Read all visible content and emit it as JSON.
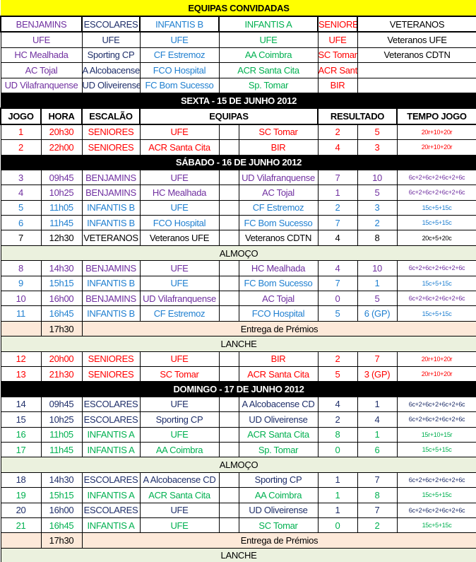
{
  "title": "EQUIPAS CONVIDADAS",
  "colors": {
    "BENJAMINS": "#7030a0",
    "ESCOLARES": "#1f2f6a",
    "INFANTIS B": "#1f7fd0",
    "INFANTIS A": "#00b050",
    "SENIORES": "#ff0000",
    "VETERANOS": "#000000"
  },
  "teams": {
    "categories": [
      "BENJAMINS",
      "ESCOLARES",
      "INFANTIS B",
      "INFANTIS A",
      "SENIORES",
      "VETERANOS"
    ],
    "rows": [
      [
        "UFE",
        "UFE",
        "UFE",
        "UFE",
        "UFE",
        "Veteranos UFE"
      ],
      [
        "HC Mealhada",
        "Sporting CP",
        "CF Estremoz",
        "AA Coimbra",
        "SC Tomar",
        "Veteranos CDTN"
      ],
      [
        "AC Tojal",
        "A Alcobacense CD",
        "FCO Hospital",
        "ACR Santa Cita",
        "ACR Santa Cita",
        ""
      ],
      [
        "UD Vilafranquense",
        "UD Oliveirense",
        "FC Bom Sucesso",
        "Sp. Tomar",
        "BIR",
        ""
      ]
    ]
  },
  "headers": [
    "JOGO",
    "HORA",
    "ESCALÃO",
    "EQUIPAS",
    "RESULTADO",
    "TEMPO JOGO"
  ],
  "schedule": [
    {
      "type": "day",
      "text": "SEXTA - 15 DE JUNHO 2012"
    },
    {
      "type": "header"
    },
    {
      "type": "game",
      "n": "1",
      "time": "20h30",
      "cat": "SENIORES",
      "home": "UFE",
      "away": "SC Tomar",
      "s1": "2",
      "s2": "5",
      "dur": "20r+10+20r"
    },
    {
      "type": "game",
      "n": "2",
      "time": "22h00",
      "cat": "SENIORES",
      "home": "ACR Santa Cita",
      "away": "BIR",
      "s1": "4",
      "s2": "3",
      "dur": "20r+10+20r"
    },
    {
      "type": "day",
      "text": "SÁBADO - 16 DE JUNHO 2012"
    },
    {
      "type": "game",
      "n": "3",
      "time": "09h45",
      "cat": "BENJAMINS",
      "home": "UFE",
      "away": "UD Vilafranquense",
      "s1": "7",
      "s2": "10",
      "dur": "6c+2+6c+2+6c+2+6c"
    },
    {
      "type": "game",
      "n": "4",
      "time": "10h25",
      "cat": "BENJAMINS",
      "home": "HC Mealhada",
      "away": "AC Tojal",
      "s1": "1",
      "s2": "5",
      "dur": "6c+2+6c+2+6c+2+6c"
    },
    {
      "type": "game",
      "n": "5",
      "time": "11h05",
      "cat": "INFANTIS B",
      "home": "UFE",
      "away": "CF Estremoz",
      "s1": "2",
      "s2": "3",
      "dur": "15c+5+15c"
    },
    {
      "type": "game",
      "n": "6",
      "time": "11h45",
      "cat": "INFANTIS B",
      "home": "FCO Hospital",
      "away": "FC Bom Sucesso",
      "s1": "7",
      "s2": "2",
      "dur": "15c+5+15c"
    },
    {
      "type": "game",
      "n": "7",
      "time": "12h30",
      "cat": "VETERANOS",
      "home": "Veteranos UFE",
      "away": "Veteranos CDTN",
      "s1": "4",
      "s2": "8",
      "dur": "20c+5+20c"
    },
    {
      "type": "break",
      "text": "ALMOÇO"
    },
    {
      "type": "game",
      "n": "8",
      "time": "14h30",
      "cat": "BENJAMINS",
      "home": "UFE",
      "away": "HC Mealhada",
      "s1": "4",
      "s2": "10",
      "dur": "6c+2+6c+2+6c+2+6c"
    },
    {
      "type": "game",
      "n": "9",
      "time": "15h15",
      "cat": "INFANTIS B",
      "home": "UFE",
      "away": "FC Bom Sucesso",
      "s1": "7",
      "s2": "1",
      "dur": "15c+5+15c"
    },
    {
      "type": "game",
      "n": "10",
      "time": "16h00",
      "cat": "BENJAMINS",
      "home": "UD Vilafranquense",
      "away": "AC Tojal",
      "s1": "0",
      "s2": "5",
      "dur": "6c+2+6c+2+6c+2+6c"
    },
    {
      "type": "game",
      "n": "11",
      "time": "16h45",
      "cat": "INFANTIS B",
      "home": "CF Estremoz",
      "away": "FCO Hospital",
      "s1": "5",
      "s2": "6 (GP)",
      "dur": "15c+5+15c"
    },
    {
      "type": "award",
      "time": "17h30",
      "text": "Entrega de Prémios"
    },
    {
      "type": "break",
      "text": "LANCHE"
    },
    {
      "type": "game",
      "n": "12",
      "time": "20h00",
      "cat": "SENIORES",
      "home": "UFE",
      "away": "BIR",
      "s1": "2",
      "s2": "7",
      "dur": "20r+10+20r"
    },
    {
      "type": "game",
      "n": "13",
      "time": "21h30",
      "cat": "SENIORES",
      "home": "SC Tomar",
      "away": "ACR Santa Cita",
      "s1": "5",
      "s2": "3 (GP)",
      "dur": "20r+10+20r"
    },
    {
      "type": "day",
      "text": "DOMINGO - 17 DE JUNHO 2012"
    },
    {
      "type": "game",
      "n": "14",
      "time": "09h45",
      "cat": "ESCOLARES",
      "home": "UFE",
      "away": "A Alcobacense CD",
      "s1": "4",
      "s2": "1",
      "dur": "6c+2+6c+2+6c+2+6c"
    },
    {
      "type": "game",
      "n": "15",
      "time": "10h25",
      "cat": "ESCOLARES",
      "home": "Sporting CP",
      "away": "UD Oliveirense",
      "s1": "2",
      "s2": "4",
      "dur": "6c+2+6c+2+6c+2+6c"
    },
    {
      "type": "game",
      "n": "16",
      "time": "11h05",
      "cat": "INFANTIS A",
      "home": "UFE",
      "away": "ACR Santa Cita",
      "s1": "8",
      "s2": "1",
      "dur": "15r+10+15r"
    },
    {
      "type": "game",
      "n": "17",
      "time": "11h45",
      "cat": "INFANTIS A",
      "home": "AA Coimbra",
      "away": "Sp. Tomar",
      "s1": "0",
      "s2": "6",
      "dur": "15c+5+15c"
    },
    {
      "type": "break",
      "text": "ALMOÇO"
    },
    {
      "type": "game",
      "n": "18",
      "time": "14h30",
      "cat": "ESCOLARES",
      "home": "A Alcobacense CD",
      "away": "Sporting CP",
      "s1": "1",
      "s2": "7",
      "dur": "6c+2+6c+2+6c+2+6c"
    },
    {
      "type": "game",
      "n": "19",
      "time": "15h15",
      "cat": "INFANTIS A",
      "home": "ACR Santa Cita",
      "away": "AA Coimbra",
      "s1": "1",
      "s2": "8",
      "dur": "15c+5+15c"
    },
    {
      "type": "game",
      "n": "20",
      "time": "16h00",
      "cat": "ESCOLARES",
      "home": "UFE",
      "away": "UD Oliveirense",
      "s1": "1",
      "s2": "7",
      "dur": "6c+2+6c+2+6c+2+6c"
    },
    {
      "type": "game",
      "n": "21",
      "time": "16h45",
      "cat": "INFANTIS A",
      "home": "UFE",
      "away": "SC Tomar",
      "s1": "0",
      "s2": "2",
      "dur": "15c+5+15c"
    },
    {
      "type": "award",
      "time": "17h30",
      "text": "Entrega de Prémios"
    },
    {
      "type": "break",
      "text": "LANCHE"
    }
  ]
}
